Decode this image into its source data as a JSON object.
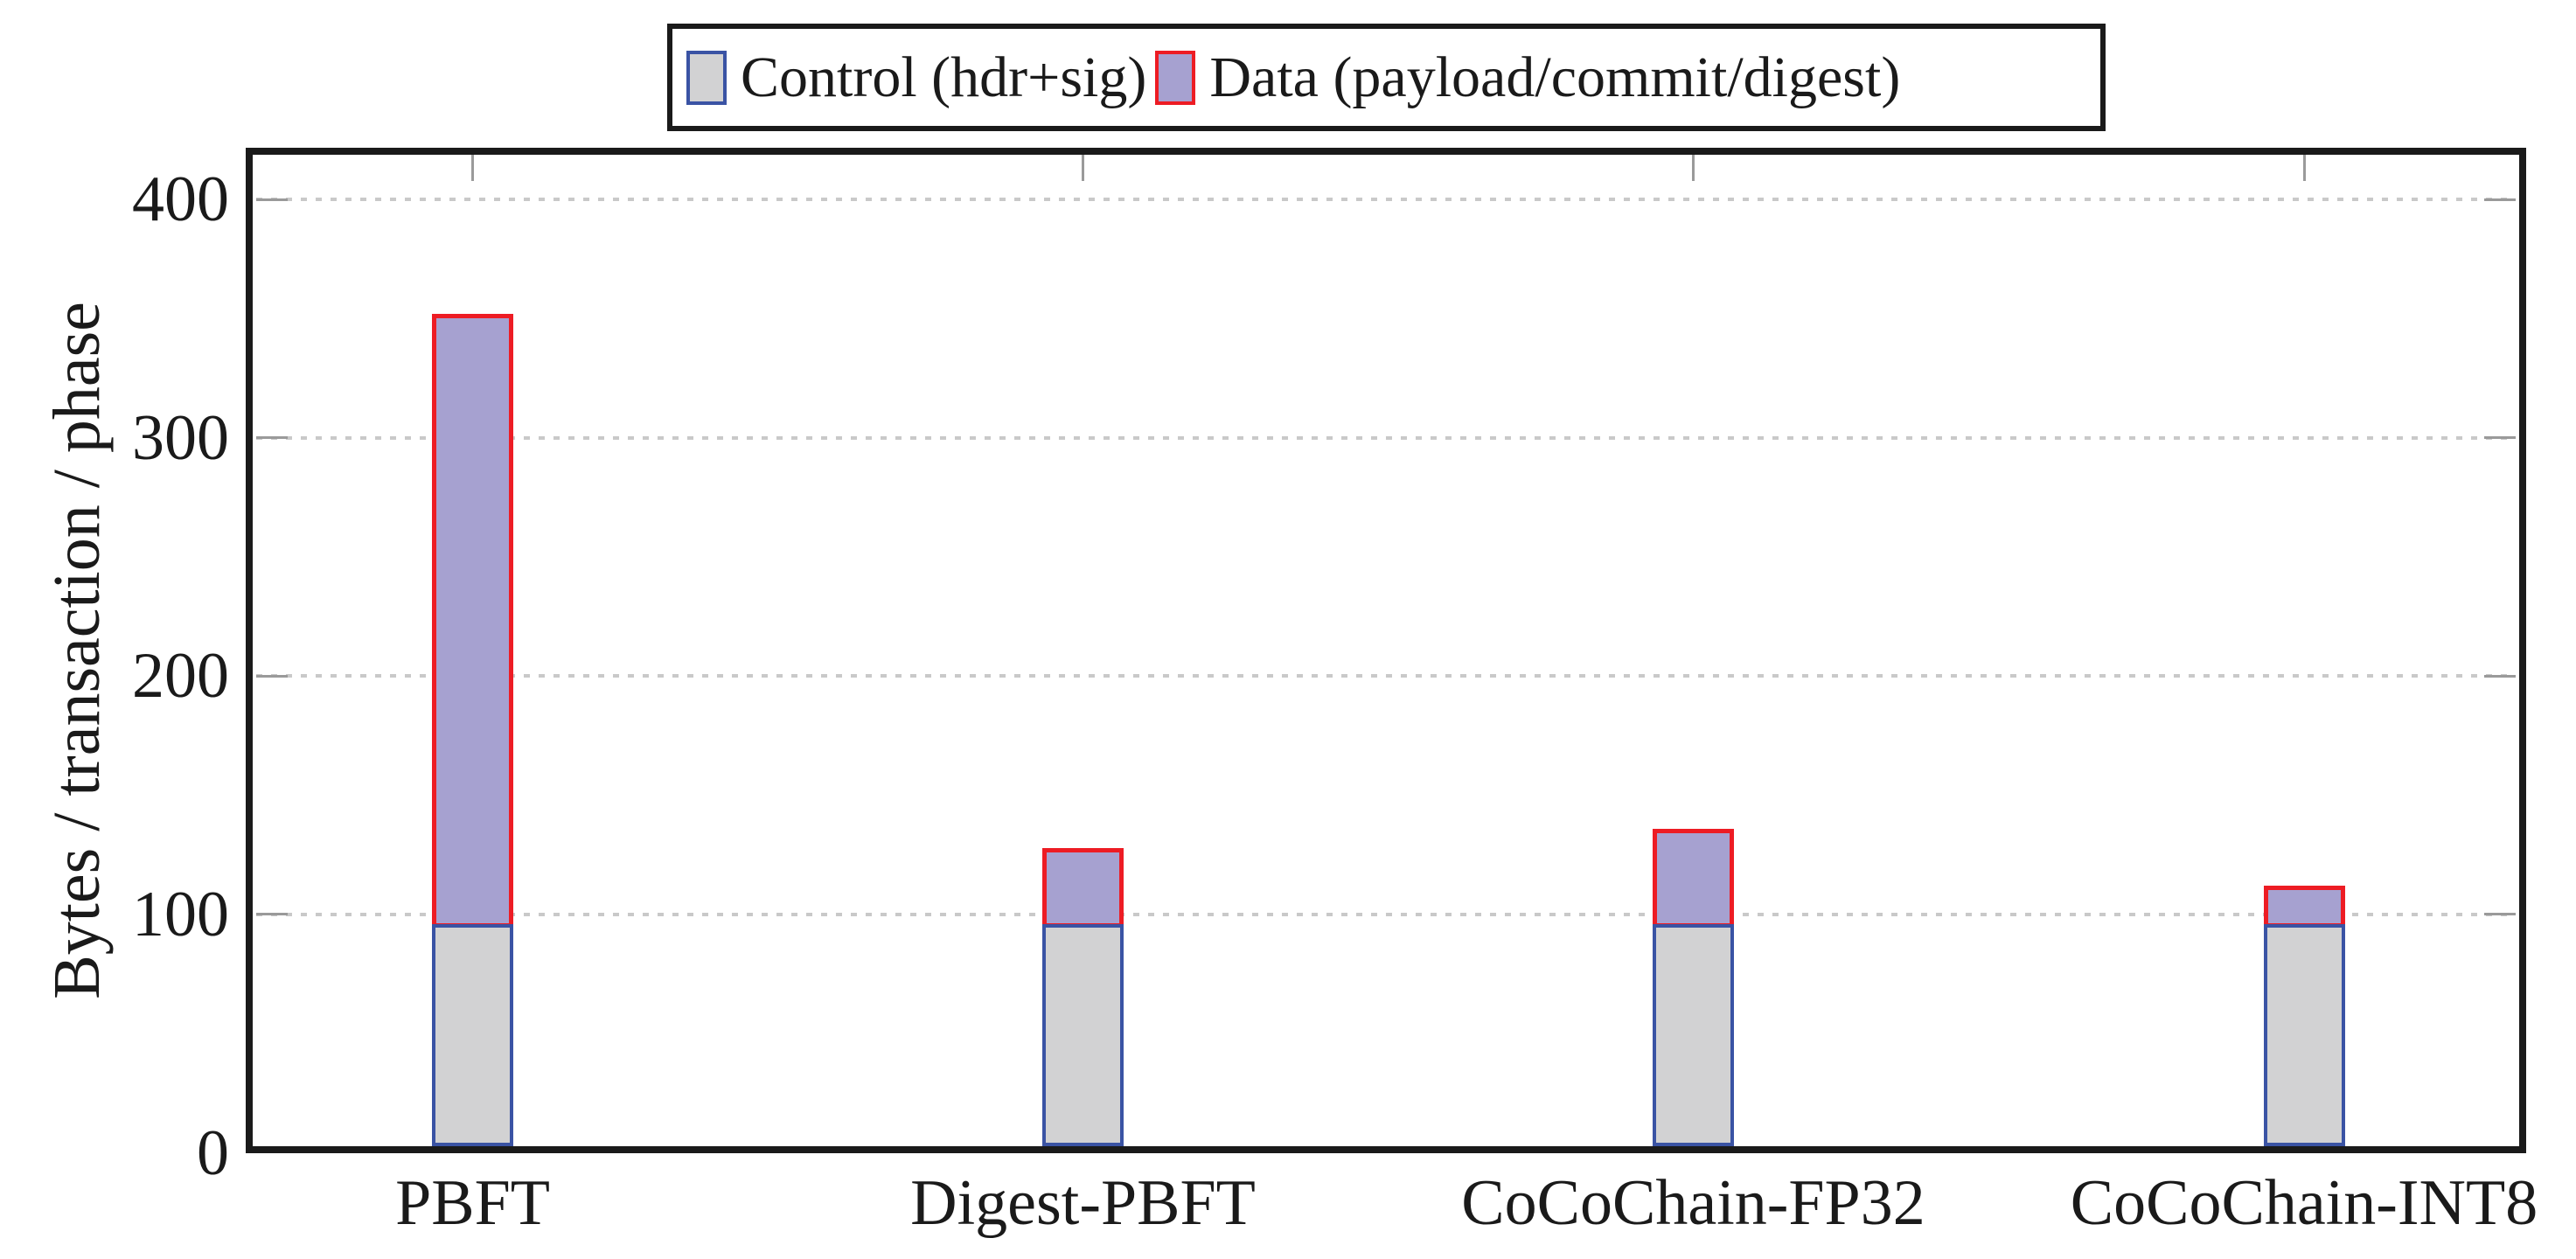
{
  "chart_data": {
    "type": "bar",
    "stacked": true,
    "title": "",
    "categories": [
      "PBFT",
      "Digest-PBFT",
      "CoCoChain-FP32",
      "CoCoChain-INT8"
    ],
    "series": [
      {
        "name": "Control (hdr+sig)",
        "values": [
          96,
          96,
          96,
          96
        ],
        "fill": "#d2d2d3",
        "border": "#3a53a4"
      },
      {
        "name": "Data (payload/commit/digest)",
        "values": [
          256,
          32,
          40,
          16
        ],
        "fill": "#a6a1d0",
        "border": "#ed1c24"
      }
    ],
    "totals": [
      352,
      128,
      136,
      112
    ],
    "xlabel": "",
    "ylabel": "Bytes / transaction / phase",
    "ylim": [
      0,
      420
    ],
    "yticks": [
      0,
      100,
      200,
      300,
      400
    ],
    "grid": "horizontal-dashed",
    "legend_position": "top-center"
  },
  "colors": {
    "background": "#ffffff",
    "axis": "#1a1a1a",
    "grid": "#c9c9c9",
    "tick": "#9a9a9a",
    "text": "#1a1a1a",
    "control_fill": "#d2d2d3",
    "control_border": "#3a53a4",
    "data_fill": "#a6a1d0",
    "data_border": "#ed1c24"
  }
}
